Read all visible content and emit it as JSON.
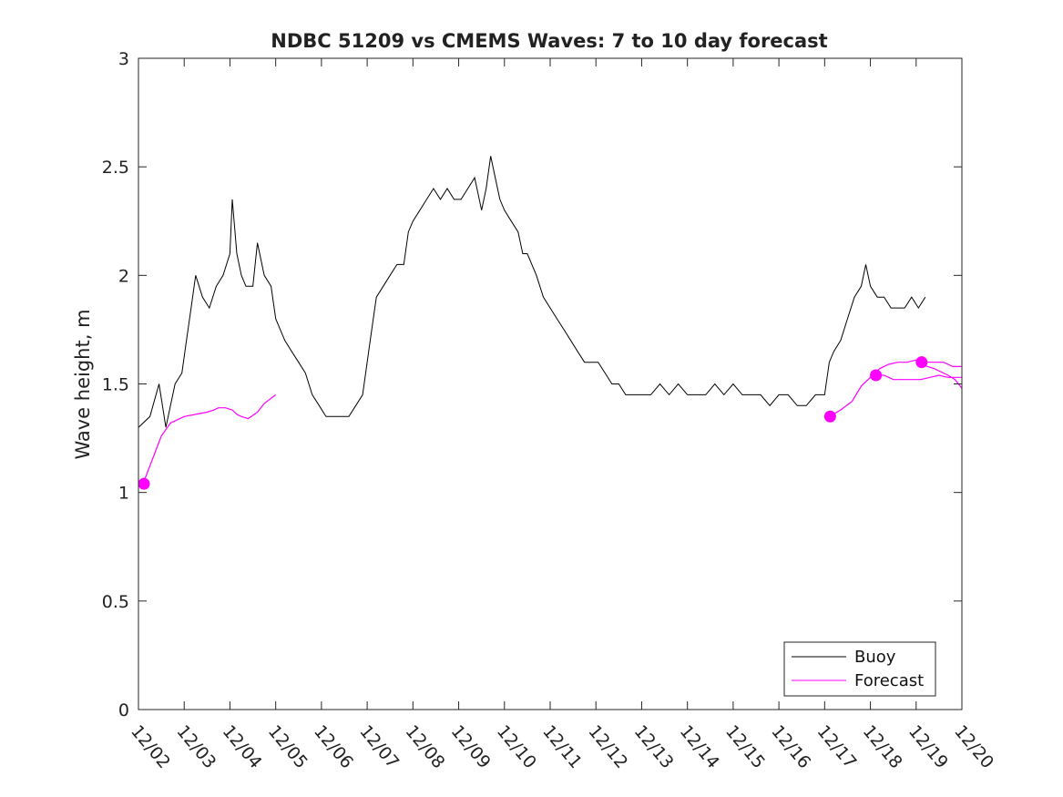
{
  "chart_data": {
    "type": "line",
    "title": "NDBC 51209 vs CMEMS Waves: 7 to 10 day forecast",
    "xlabel": "",
    "ylabel": "Wave height, m",
    "xlim": [
      0,
      18
    ],
    "ylim": [
      0,
      3
    ],
    "x_tick_values": [
      0,
      1,
      2,
      3,
      4,
      5,
      6,
      7,
      8,
      9,
      10,
      11,
      12,
      13,
      14,
      15,
      16,
      17,
      18
    ],
    "x_tick_labels": [
      "12/02",
      "12/03",
      "12/04",
      "12/05",
      "12/06",
      "12/07",
      "12/08",
      "12/09",
      "12/10",
      "12/11",
      "12/12",
      "12/13",
      "12/14",
      "12/15",
      "12/16",
      "12/17",
      "12/18",
      "12/19",
      "12/20"
    ],
    "y_ticks": [
      0,
      0.5,
      1,
      1.5,
      2,
      2.5,
      3
    ],
    "y_tick_labels": [
      "0",
      "0.5",
      "1",
      "1.5",
      "2",
      "2.5",
      "3"
    ],
    "legend": {
      "placement": "bottom-right",
      "entries": [
        "Buoy",
        "Forecast"
      ]
    },
    "colors": {
      "buoy": "#000000",
      "forecast": "#ff00ff",
      "axis": "#262626"
    },
    "series": [
      {
        "name": "Buoy",
        "color": "#000000",
        "points": [
          [
            0.0,
            1.3
          ],
          [
            0.25,
            1.35
          ],
          [
            0.45,
            1.5
          ],
          [
            0.6,
            1.3
          ],
          [
            0.8,
            1.5
          ],
          [
            0.95,
            1.55
          ],
          [
            1.05,
            1.7
          ],
          [
            1.15,
            1.85
          ],
          [
            1.25,
            2.0
          ],
          [
            1.4,
            1.9
          ],
          [
            1.55,
            1.85
          ],
          [
            1.7,
            1.95
          ],
          [
            1.85,
            2.0
          ],
          [
            2.0,
            2.1
          ],
          [
            2.05,
            2.35
          ],
          [
            2.15,
            2.1
          ],
          [
            2.25,
            2.0
          ],
          [
            2.35,
            1.95
          ],
          [
            2.5,
            1.95
          ],
          [
            2.6,
            2.15
          ],
          [
            2.75,
            2.0
          ],
          [
            2.9,
            1.95
          ],
          [
            3.0,
            1.8
          ],
          [
            3.1,
            1.75
          ],
          [
            3.2,
            1.7
          ],
          [
            3.35,
            1.65
          ],
          [
            3.5,
            1.6
          ],
          [
            3.65,
            1.55
          ],
          [
            3.8,
            1.45
          ],
          [
            3.95,
            1.4
          ],
          [
            4.1,
            1.35
          ],
          [
            4.25,
            1.35
          ],
          [
            4.4,
            1.35
          ],
          [
            4.6,
            1.35
          ],
          [
            4.75,
            1.4
          ],
          [
            4.9,
            1.45
          ],
          [
            5.0,
            1.6
          ],
          [
            5.1,
            1.75
          ],
          [
            5.2,
            1.9
          ],
          [
            5.35,
            1.95
          ],
          [
            5.5,
            2.0
          ],
          [
            5.65,
            2.05
          ],
          [
            5.8,
            2.05
          ],
          [
            5.9,
            2.2
          ],
          [
            6.0,
            2.25
          ],
          [
            6.15,
            2.3
          ],
          [
            6.3,
            2.35
          ],
          [
            6.45,
            2.4
          ],
          [
            6.6,
            2.35
          ],
          [
            6.75,
            2.4
          ],
          [
            6.9,
            2.35
          ],
          [
            7.05,
            2.35
          ],
          [
            7.2,
            2.4
          ],
          [
            7.35,
            2.45
          ],
          [
            7.5,
            2.3
          ],
          [
            7.6,
            2.4
          ],
          [
            7.7,
            2.55
          ],
          [
            7.8,
            2.45
          ],
          [
            7.9,
            2.35
          ],
          [
            8.0,
            2.3
          ],
          [
            8.15,
            2.25
          ],
          [
            8.3,
            2.2
          ],
          [
            8.4,
            2.1
          ],
          [
            8.5,
            2.1
          ],
          [
            8.6,
            2.05
          ],
          [
            8.7,
            2.0
          ],
          [
            8.85,
            1.9
          ],
          [
            9.0,
            1.85
          ],
          [
            9.15,
            1.8
          ],
          [
            9.3,
            1.75
          ],
          [
            9.45,
            1.7
          ],
          [
            9.6,
            1.65
          ],
          [
            9.75,
            1.6
          ],
          [
            9.9,
            1.6
          ],
          [
            10.05,
            1.6
          ],
          [
            10.2,
            1.55
          ],
          [
            10.35,
            1.5
          ],
          [
            10.5,
            1.5
          ],
          [
            10.65,
            1.45
          ],
          [
            10.8,
            1.45
          ],
          [
            11.0,
            1.45
          ],
          [
            11.2,
            1.45
          ],
          [
            11.4,
            1.5
          ],
          [
            11.6,
            1.45
          ],
          [
            11.8,
            1.5
          ],
          [
            12.0,
            1.45
          ],
          [
            12.2,
            1.45
          ],
          [
            12.4,
            1.45
          ],
          [
            12.6,
            1.5
          ],
          [
            12.8,
            1.45
          ],
          [
            13.0,
            1.5
          ],
          [
            13.2,
            1.45
          ],
          [
            13.4,
            1.45
          ],
          [
            13.6,
            1.45
          ],
          [
            13.8,
            1.4
          ],
          [
            14.0,
            1.45
          ],
          [
            14.2,
            1.45
          ],
          [
            14.4,
            1.4
          ],
          [
            14.6,
            1.4
          ],
          [
            14.8,
            1.45
          ],
          [
            15.0,
            1.45
          ],
          [
            15.1,
            1.6
          ],
          [
            15.2,
            1.65
          ],
          [
            15.35,
            1.7
          ],
          [
            15.5,
            1.8
          ],
          [
            15.65,
            1.9
          ],
          [
            15.8,
            1.95
          ],
          [
            15.9,
            2.05
          ],
          [
            16.0,
            1.95
          ],
          [
            16.15,
            1.9
          ],
          [
            16.3,
            1.9
          ],
          [
            16.45,
            1.85
          ],
          [
            16.6,
            1.85
          ],
          [
            16.75,
            1.85
          ],
          [
            16.9,
            1.9
          ],
          [
            17.05,
            1.85
          ],
          [
            17.2,
            1.9
          ]
        ]
      },
      {
        "name": "Forecast",
        "color": "#ff00ff",
        "segments": [
          [
            [
              0.1,
              1.04
            ],
            [
              0.3,
              1.15
            ],
            [
              0.5,
              1.26
            ],
            [
              0.7,
              1.32
            ],
            [
              1.0,
              1.35
            ],
            [
              1.25,
              1.36
            ],
            [
              1.5,
              1.37
            ],
            [
              1.65,
              1.38
            ],
            [
              1.75,
              1.39
            ],
            [
              1.9,
              1.39
            ],
            [
              2.05,
              1.38
            ],
            [
              2.15,
              1.36
            ],
            [
              2.25,
              1.35
            ],
            [
              2.4,
              1.34
            ],
            [
              2.6,
              1.37
            ],
            [
              2.75,
              1.41
            ],
            [
              3.0,
              1.45
            ]
          ],
          [
            [
              15.1,
              1.35
            ],
            [
              15.35,
              1.38
            ],
            [
              15.6,
              1.42
            ],
            [
              15.8,
              1.49
            ],
            [
              16.0,
              1.53
            ],
            [
              16.1,
              1.54
            ],
            [
              16.3,
              1.54
            ],
            [
              16.5,
              1.52
            ],
            [
              16.8,
              1.52
            ],
            [
              17.1,
              1.52
            ],
            [
              17.3,
              1.53
            ],
            [
              17.5,
              1.54
            ],
            [
              17.7,
              1.53
            ],
            [
              17.85,
              1.53
            ],
            [
              18.0,
              1.53
            ]
          ],
          [
            [
              16.0,
              1.53
            ],
            [
              16.2,
              1.57
            ],
            [
              16.4,
              1.59
            ],
            [
              16.6,
              1.6
            ],
            [
              16.8,
              1.6
            ],
            [
              17.0,
              1.61
            ],
            [
              17.2,
              1.6
            ],
            [
              17.4,
              1.6
            ],
            [
              17.6,
              1.6
            ],
            [
              17.8,
              1.58
            ],
            [
              18.0,
              1.58
            ]
          ],
          [
            [
              17.1,
              1.59
            ],
            [
              17.4,
              1.57
            ],
            [
              17.7,
              1.54
            ],
            [
              17.85,
              1.52
            ],
            [
              18.0,
              1.48
            ]
          ]
        ],
        "markers": [
          [
            0.12,
            1.04
          ],
          [
            15.12,
            1.35
          ],
          [
            16.12,
            1.54
          ],
          [
            17.12,
            1.6
          ]
        ]
      }
    ]
  }
}
